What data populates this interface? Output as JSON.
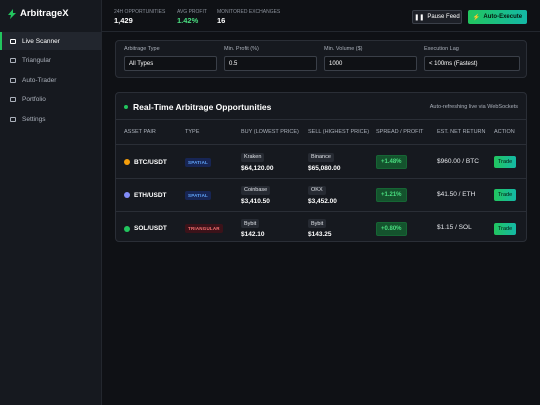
{
  "sidebar": {
    "brand": "ArbitrageX",
    "nav": [
      "Live Scanner",
      "Triangular",
      "Auto-Trader",
      "Portfolio",
      "Settings"
    ]
  },
  "header": {
    "stats": [
      {
        "label": "24H OPPORTUNITIES",
        "value": "1,429"
      },
      {
        "label": "AVG PROFIT",
        "value": "1.42%"
      },
      {
        "label": "MONITORED EXCHANGES",
        "value": "16"
      }
    ],
    "buttons": [
      "Pause Feed",
      "Auto-Execute"
    ]
  },
  "filters": [
    {
      "label": "Arbitrage Type",
      "value": "All Types"
    },
    {
      "label": "Min. Profit (%)",
      "value": "0.5"
    },
    {
      "label": "Min. Volume ($)",
      "value": "1000"
    },
    {
      "label": "Execution Lag",
      "value": "< 100ms (Fastest)"
    }
  ],
  "table": {
    "title": "Real-Time Arbitrage Opportunities",
    "note": "Auto-refreshing live via WebSockets",
    "columns": [
      "Asset Pair",
      "Type",
      "Buy (Lowest Price)",
      "Sell (Highest Price)",
      "Spread / Profit",
      "Est. Net Return",
      "Action"
    ],
    "rows": [
      [
        "BTC/USDT",
        "SPATIAL",
        "Kraken",
        "$64,120.00",
        "Binance",
        "$65,080.00",
        "+1.48%",
        "$960.00 / BTC",
        "Trade"
      ],
      [
        "ETH/USDT",
        "SPATIAL",
        "Coinbase",
        "$3,410.50",
        "OKX",
        "$3,452.00",
        "+1.21%",
        "$41.50 / ETH",
        "Trade"
      ],
      [
        "SOL/USDT",
        "TRIANGULAR",
        "Bybit",
        "$142.10",
        "Bybit",
        "$143.25",
        "+0.80%",
        "$1.15 / SOL",
        "Trade"
      ]
    ]
  }
}
